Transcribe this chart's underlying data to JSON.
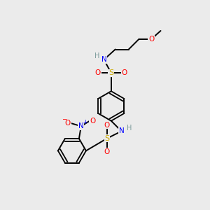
{
  "bg_color": "#ebebeb",
  "atom_colors": {
    "C": "#000000",
    "H": "#7a9a9a",
    "N": "#0000ff",
    "O": "#ff0000",
    "S": "#ccaa00"
  },
  "bond_color": "#000000",
  "fig_size": [
    3.0,
    3.0
  ],
  "dpi": 100
}
